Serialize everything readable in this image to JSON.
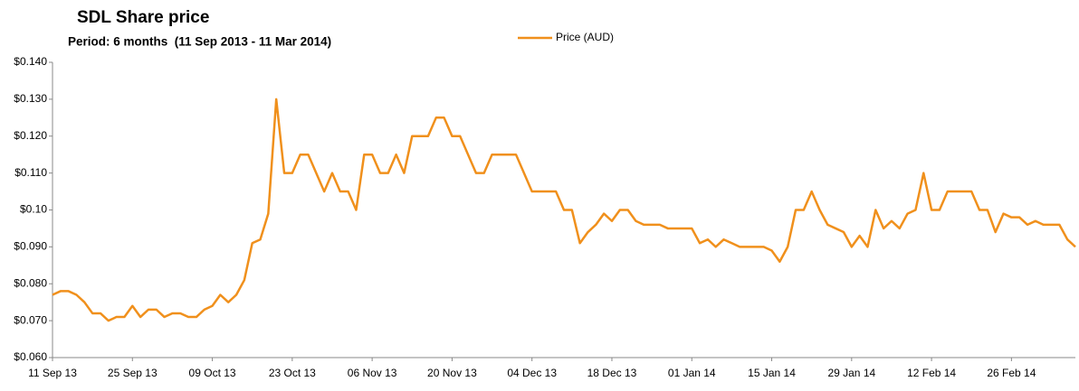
{
  "chart_data": {
    "type": "line",
    "title": "SDL Share price",
    "subtitle": "Period: 6 months  (11 Sep 2013 - 11 Mar 2014)",
    "legend": "top",
    "categories": [
      "11 Sep 13",
      null,
      null,
      null,
      null,
      null,
      null,
      null,
      null,
      null,
      "25 Sep 13",
      null,
      null,
      null,
      null,
      null,
      null,
      null,
      null,
      null,
      "09 Oct 13",
      null,
      null,
      null,
      null,
      null,
      null,
      null,
      null,
      null,
      "23 Oct 13",
      null,
      null,
      null,
      null,
      null,
      null,
      null,
      null,
      null,
      "06 Nov 13",
      null,
      null,
      null,
      null,
      null,
      null,
      null,
      null,
      null,
      "20 Nov 13",
      null,
      null,
      null,
      null,
      null,
      null,
      null,
      null,
      null,
      "04 Dec 13",
      null,
      null,
      null,
      null,
      null,
      null,
      null,
      null,
      null,
      "18 Dec 13",
      null,
      null,
      null,
      null,
      null,
      null,
      null,
      null,
      null,
      "01 Jan 14",
      null,
      null,
      null,
      null,
      null,
      null,
      null,
      null,
      null,
      "15 Jan 14",
      null,
      null,
      null,
      null,
      null,
      null,
      null,
      null,
      null,
      "29 Jan 14",
      null,
      null,
      null,
      null,
      null,
      null,
      null,
      null,
      null,
      "12 Feb 14",
      null,
      null,
      null,
      null,
      null,
      null,
      null,
      null,
      null,
      "26 Feb 14",
      null,
      null,
      null,
      null,
      null,
      null,
      null,
      null
    ],
    "series": [
      {
        "name": "Price (AUD)",
        "color": "#f0901c",
        "values": [
          0.077,
          0.078,
          0.078,
          0.077,
          0.075,
          0.072,
          0.072,
          0.07,
          0.071,
          0.071,
          0.074,
          0.071,
          0.073,
          0.073,
          0.071,
          0.072,
          0.072,
          0.071,
          0.071,
          0.073,
          0.074,
          0.077,
          0.075,
          0.077,
          0.081,
          0.091,
          0.092,
          0.099,
          0.13,
          0.11,
          0.11,
          0.115,
          0.115,
          0.11,
          0.105,
          0.11,
          0.105,
          0.105,
          0.1,
          0.115,
          0.115,
          0.11,
          0.11,
          0.115,
          0.11,
          0.12,
          0.12,
          0.12,
          0.125,
          0.125,
          0.12,
          0.12,
          0.115,
          0.11,
          0.11,
          0.115,
          0.115,
          0.115,
          0.115,
          0.11,
          0.105,
          0.105,
          0.105,
          0.105,
          0.1,
          0.1,
          0.091,
          0.094,
          0.096,
          0.099,
          0.097,
          0.1,
          0.1,
          0.097,
          0.096,
          0.096,
          0.096,
          0.095,
          0.095,
          0.095,
          0.095,
          0.091,
          0.092,
          0.09,
          0.092,
          0.091,
          0.09,
          0.09,
          0.09,
          0.09,
          0.089,
          0.086,
          0.09,
          0.1,
          0.1,
          0.105,
          0.1,
          0.096,
          0.095,
          0.094,
          0.09,
          0.093,
          0.09,
          0.1,
          0.095,
          0.097,
          0.095,
          0.099,
          0.1,
          0.11,
          0.1,
          0.1,
          0.105,
          0.105,
          0.105,
          0.105,
          0.1,
          0.1,
          0.094,
          0.099,
          0.098,
          0.098,
          0.096,
          0.097,
          0.096,
          0.096,
          0.096,
          0.092,
          0.09
        ]
      }
    ],
    "ylim": [
      0.06,
      0.14
    ],
    "yticks": [
      {
        "value": 0.06,
        "label": "$0.060"
      },
      {
        "value": 0.07,
        "label": "$0.070"
      },
      {
        "value": 0.08,
        "label": "$0.080"
      },
      {
        "value": 0.09,
        "label": "$0.090"
      },
      {
        "value": 0.1,
        "label": "$0.10"
      },
      {
        "value": 0.11,
        "label": "$0.110"
      },
      {
        "value": 0.12,
        "label": "$0.120"
      },
      {
        "value": 0.13,
        "label": "$0.130"
      },
      {
        "value": 0.14,
        "label": "$0.140"
      }
    ],
    "grid": false
  }
}
